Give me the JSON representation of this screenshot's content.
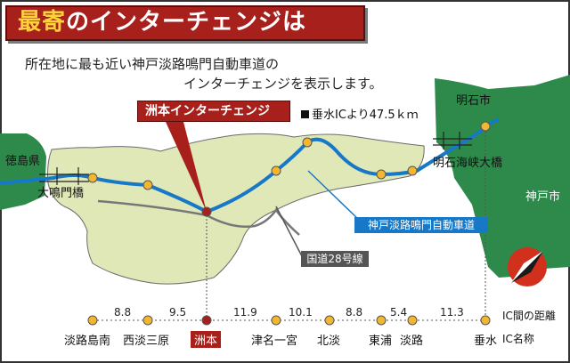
{
  "title": {
    "highlight": "最寄",
    "rest": "のインターチェンジは"
  },
  "description": {
    "line1": "所在地に最も近い神戸淡路鳴門自動車道の",
    "line2": "インターチェンジを表示します。"
  },
  "callout": {
    "label": "洲本インターチェンジ",
    "distance": "垂水ICより47.5ｋｍ"
  },
  "map_labels": {
    "tokushima": "徳島県",
    "naruto_bridge": "大鳴門橋",
    "akashi_city": "明石市",
    "akashi_bridge": "明石海峡大橋",
    "kobe_city": "神戸市",
    "highway": "神戸淡路鳴門自動車道",
    "route28": "国道28号線"
  },
  "colors": {
    "accent": "#a8201c",
    "highway": "#1778c8",
    "island": "#e0e8b8",
    "sea": "#2d8a4a"
  },
  "interchange_distances": [
    "8.8",
    "9.5",
    "11.9",
    "10.1",
    "8.8",
    "5.4",
    "11.3"
  ],
  "interchanges": [
    "淡路島南",
    "西淡三原",
    "洲本",
    "津名一宮",
    "北淡",
    "東浦",
    "淡路",
    "垂水"
  ],
  "selected_interchange": "洲本",
  "legend": {
    "distance": "IC間の距離",
    "names": "IC名称"
  },
  "compass_icon": "north-arrow-icon"
}
